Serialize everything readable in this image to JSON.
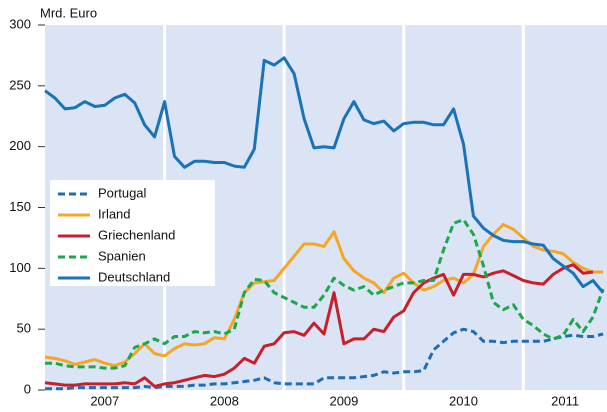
{
  "chart_data": {
    "type": "line",
    "y_label": "Mrd. Euro",
    "x": [
      2007,
      2007.083,
      2007.167,
      2007.25,
      2007.333,
      2007.417,
      2007.5,
      2007.583,
      2007.667,
      2007.75,
      2007.833,
      2007.917,
      2008,
      2008.083,
      2008.167,
      2008.25,
      2008.333,
      2008.417,
      2008.5,
      2008.583,
      2008.667,
      2008.75,
      2008.833,
      2008.917,
      2009,
      2009.083,
      2009.167,
      2009.25,
      2009.333,
      2009.417,
      2009.5,
      2009.583,
      2009.667,
      2009.75,
      2009.833,
      2009.917,
      2010,
      2010.083,
      2010.167,
      2010.25,
      2010.333,
      2010.417,
      2010.5,
      2010.583,
      2010.667,
      2010.75,
      2010.833,
      2010.917,
      2011,
      2011.083,
      2011.167,
      2011.25,
      2011.333,
      2011.417,
      2011.5,
      2011.583,
      2011.667
    ],
    "series": [
      {
        "name": "Portugal",
        "color": "#1f6db3",
        "style": "dashed",
        "values": [
          1,
          1,
          1,
          2,
          2,
          2,
          2,
          2,
          2,
          2,
          3,
          2,
          3,
          3,
          3,
          4,
          4,
          5,
          5,
          6,
          7,
          8,
          10,
          6,
          5,
          5,
          5,
          5,
          10,
          10,
          10,
          10,
          11,
          12,
          15,
          14,
          15,
          15,
          16,
          33,
          40,
          47,
          50,
          48,
          40,
          40,
          39,
          40,
          40,
          40,
          40,
          42,
          44,
          45,
          44,
          44,
          46
        ]
      },
      {
        "name": "Irland",
        "color": "#f5a623",
        "style": "solid",
        "values": [
          27,
          26,
          24,
          21,
          23,
          25,
          22,
          20,
          23,
          30,
          38,
          30,
          28,
          34,
          38,
          37,
          38,
          43,
          42,
          58,
          80,
          88,
          89,
          90,
          100,
          110,
          120,
          120,
          118,
          130,
          108,
          98,
          92,
          88,
          80,
          92,
          96,
          88,
          82,
          85,
          90,
          92,
          88,
          95,
          118,
          128,
          136,
          132,
          125,
          118,
          115,
          114,
          112,
          105,
          100,
          97,
          97
        ]
      },
      {
        "name": "Griechenland",
        "color": "#c8202a",
        "style": "solid",
        "values": [
          6,
          5,
          4,
          4,
          5,
          5,
          5,
          5,
          6,
          5,
          10,
          3,
          5,
          6,
          8,
          10,
          12,
          11,
          13,
          18,
          26,
          22,
          36,
          38,
          47,
          48,
          45,
          55,
          46,
          80,
          38,
          42,
          42,
          50,
          48,
          60,
          65,
          80,
          88,
          92,
          95,
          78,
          95,
          95,
          93,
          96,
          98,
          94,
          90,
          88,
          87,
          95,
          100,
          103,
          96,
          97,
          null
        ]
      },
      {
        "name": "Spanien",
        "color": "#1aa84a",
        "style": "dashed",
        "values": [
          22,
          22,
          20,
          19,
          19,
          19,
          18,
          18,
          20,
          35,
          38,
          42,
          38,
          44,
          44,
          48,
          47,
          48,
          46,
          50,
          80,
          91,
          90,
          80,
          76,
          72,
          68,
          68,
          78,
          92,
          86,
          82,
          85,
          78,
          82,
          85,
          88,
          88,
          90,
          90,
          115,
          137,
          140,
          128,
          102,
          72,
          66,
          70,
          58,
          53,
          46,
          42,
          45,
          58,
          48,
          60,
          83
        ]
      },
      {
        "name": "Deutschland",
        "color": "#1a73b8",
        "style": "solid",
        "values": [
          246,
          240,
          231,
          232,
          237,
          233,
          234,
          240,
          243,
          236,
          218,
          208,
          237,
          192,
          183,
          188,
          188,
          187,
          187,
          184,
          183,
          198,
          271,
          267,
          273,
          260,
          223,
          199,
          200,
          199,
          223,
          237,
          222,
          219,
          221,
          213,
          219,
          220,
          220,
          218,
          218,
          231,
          202,
          143,
          133,
          127,
          123,
          122,
          122,
          120,
          119,
          108,
          102,
          96,
          85,
          90,
          80
        ]
      }
    ],
    "xlim": [
      2007,
      2011.7
    ],
    "xticks": [
      {
        "value": 2007.5,
        "label": "2007"
      },
      {
        "value": 2008.5,
        "label": "2008"
      },
      {
        "value": 2009.5,
        "label": "2009"
      },
      {
        "value": 2010.5,
        "label": "2010"
      },
      {
        "value": 2011.35,
        "label": "2011"
      }
    ],
    "year_lines": [
      2008,
      2009,
      2010,
      2011
    ],
    "ylim": [
      0,
      300
    ],
    "yticks": [
      0,
      50,
      100,
      150,
      200,
      250,
      300
    ],
    "legend": "left"
  }
}
